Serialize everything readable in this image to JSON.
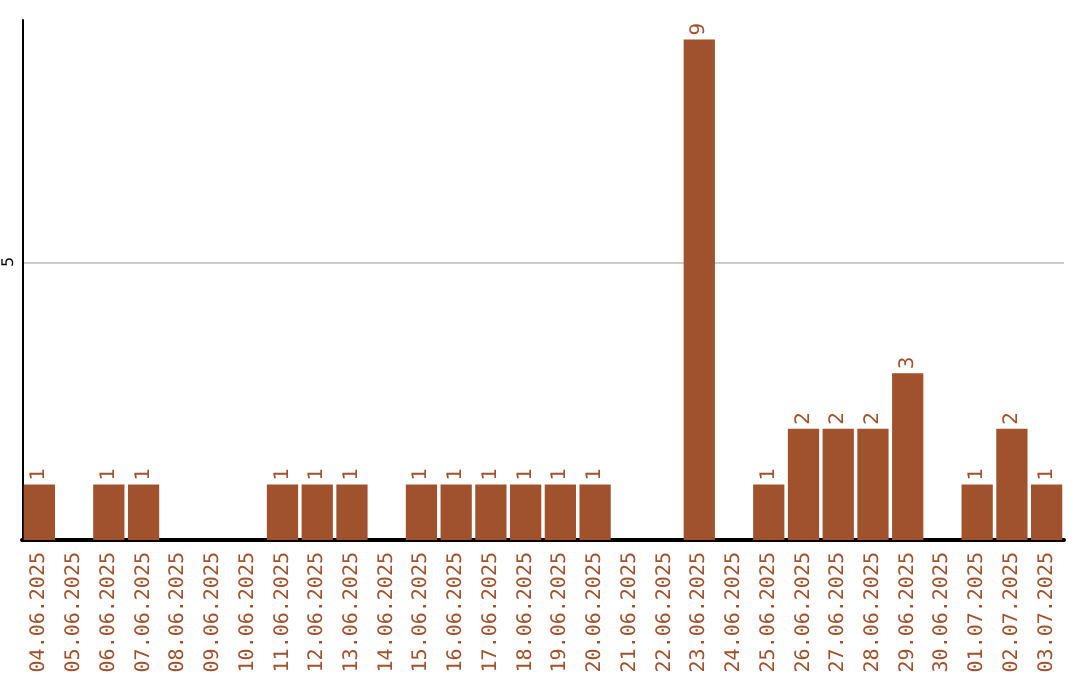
{
  "chart_data": {
    "type": "bar",
    "categories": [
      "04.06.2025",
      "05.06.2025",
      "06.06.2025",
      "07.06.2025",
      "08.06.2025",
      "09.06.2025",
      "10.06.2025",
      "11.06.2025",
      "12.06.2025",
      "13.06.2025",
      "14.06.2025",
      "15.06.2025",
      "16.06.2025",
      "17.06.2025",
      "18.06.2025",
      "19.06.2025",
      "20.06.2025",
      "21.06.2025",
      "22.06.2025",
      "23.06.2025",
      "24.06.2025",
      "25.06.2025",
      "26.06.2025",
      "27.06.2025",
      "28.06.2025",
      "29.06.2025",
      "30.06.2025",
      "01.07.2025",
      "02.07.2025",
      "03.07.2025"
    ],
    "values": [
      1,
      0,
      1,
      1,
      0,
      0,
      0,
      1,
      1,
      1,
      0,
      1,
      1,
      1,
      1,
      1,
      1,
      0,
      0,
      9,
      0,
      1,
      2,
      2,
      2,
      3,
      0,
      1,
      2,
      1
    ],
    "value_labels": [
      "1",
      null,
      "1",
      "1",
      null,
      null,
      null,
      "1",
      "1",
      "1",
      null,
      "1",
      "1",
      "1",
      "1",
      "1",
      "1",
      null,
      null,
      "9",
      null,
      "1",
      "2",
      "2",
      "2",
      "3",
      null,
      "1",
      "2",
      "1"
    ],
    "color": "#a0522d",
    "ylim": [
      0,
      9.35
    ],
    "yticks": [
      5
    ],
    "grid": "y"
  }
}
